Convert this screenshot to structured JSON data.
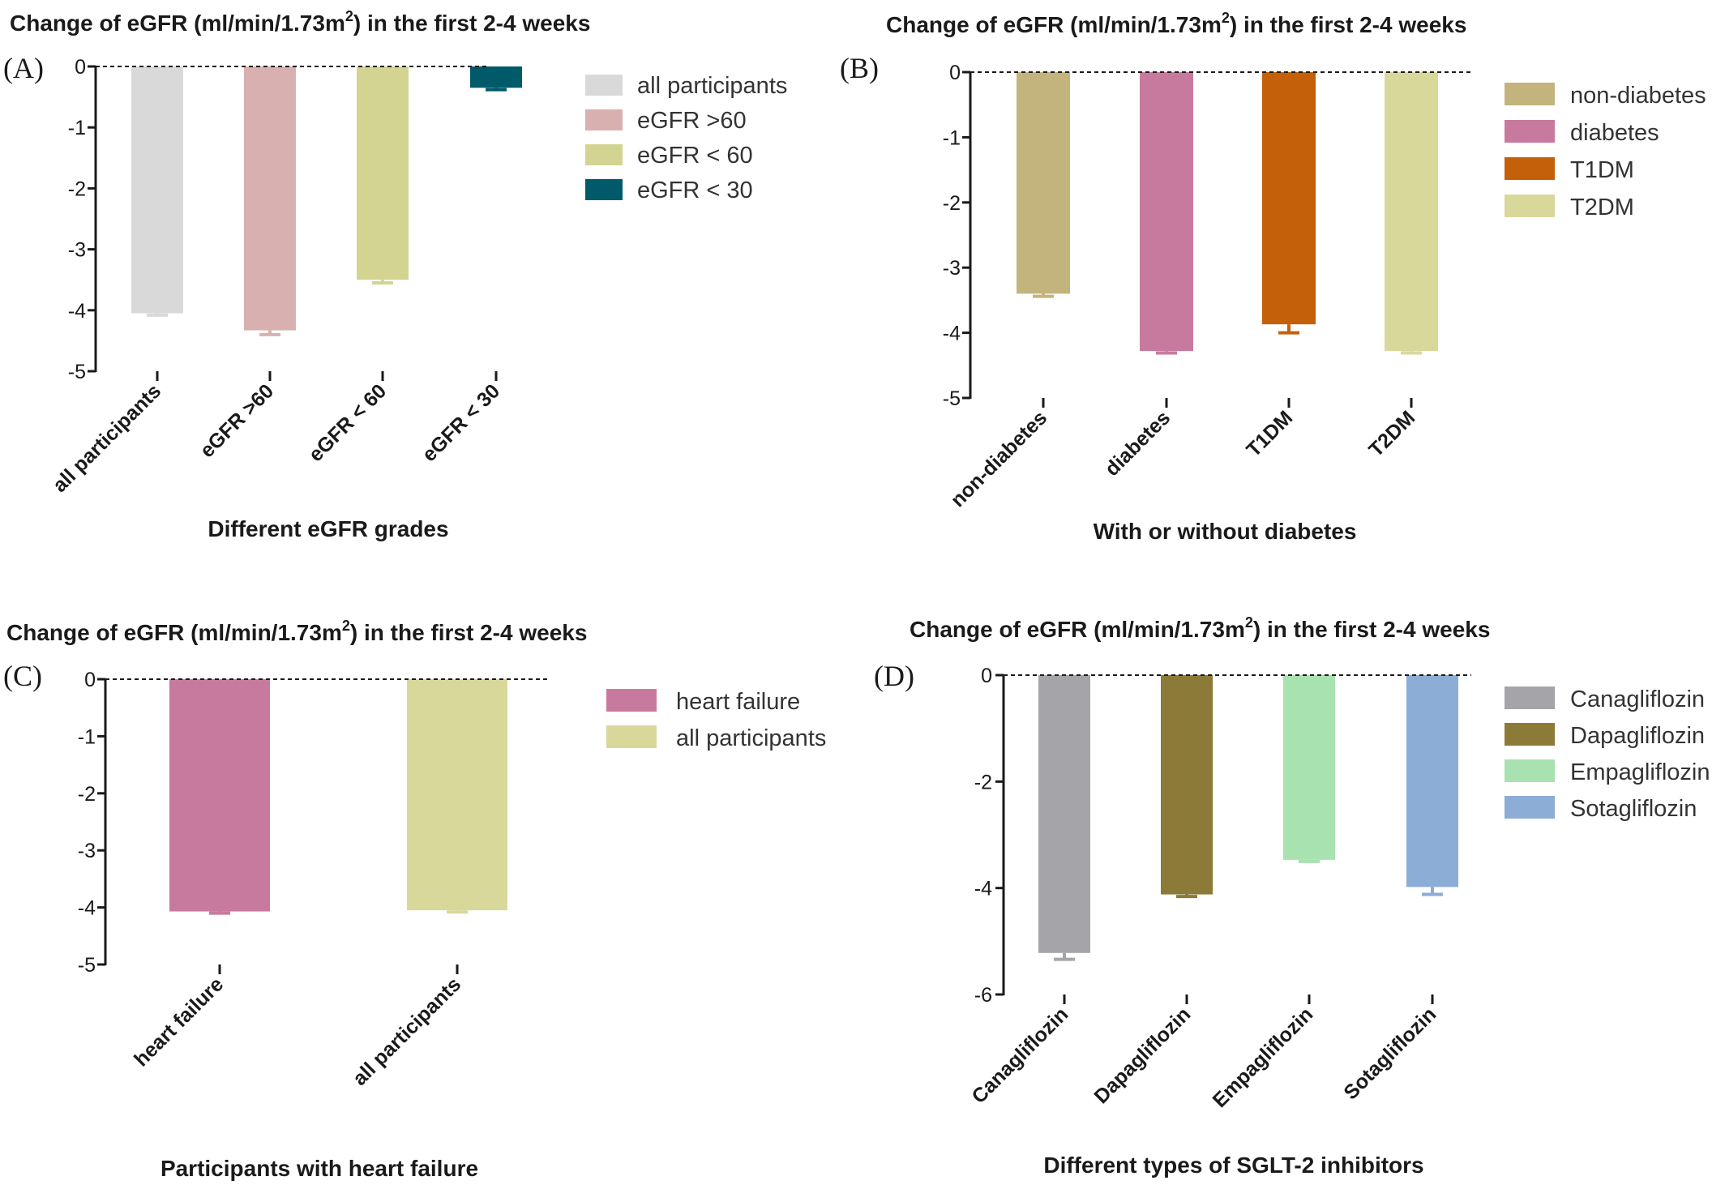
{
  "chart_data": [
    {
      "type": "bar",
      "panel": "(A)",
      "title": "Change of eGFR (ml/min/1.73m",
      "title_sup": "2",
      "title_tail": ") in the first 2-4 weeks",
      "xlabel": "Different eGFR grades",
      "ylim": [
        -5,
        0
      ],
      "yticks": [
        0,
        -1,
        -2,
        -3,
        -4,
        -5
      ],
      "categories": [
        "all participants",
        "eGFR >60",
        "eGFR < 60",
        "eGFR < 30"
      ],
      "values": [
        -4.05,
        -4.33,
        -3.5,
        -0.35
      ],
      "errors": [
        0.03,
        0.07,
        0.05,
        0.03
      ],
      "colors": [
        "#d9d9d9",
        "#d9b0b0",
        "#d4d492",
        "#005a6a"
      ],
      "legend": [
        "all participants",
        "eGFR >60",
        "eGFR < 60",
        "eGFR < 30"
      ],
      "legend_position": "right"
    },
    {
      "type": "bar",
      "panel": "(B)",
      "title": "Change of eGFR (ml/min/1.73m",
      "title_sup": "2",
      "title_tail": ") in the first 2-4 weeks",
      "xlabel": "With or without diabetes",
      "ylim": [
        -5,
        0
      ],
      "yticks": [
        0,
        -1,
        -2,
        -3,
        -4,
        -5
      ],
      "categories": [
        "non-diabetes",
        "diabetes",
        "T1DM",
        "T2DM"
      ],
      "values": [
        -3.4,
        -4.28,
        -3.87,
        -4.28
      ],
      "errors": [
        0.04,
        0.03,
        0.13,
        0.03
      ],
      "colors": [
        "#c2b47c",
        "#c87a9e",
        "#c4600a",
        "#d9d89b"
      ],
      "legend": [
        "non-diabetes",
        "diabetes",
        "T1DM",
        "T2DM"
      ],
      "legend_position": "right"
    },
    {
      "type": "bar",
      "panel": "(C)",
      "title": "Change of eGFR (ml/min/1.73m",
      "title_sup": "2",
      "title_tail": ") in the first 2-4 weeks",
      "xlabel": "Participants with heart failure",
      "ylim": [
        -5,
        0
      ],
      "yticks": [
        0,
        -1,
        -2,
        -3,
        -4,
        -5
      ],
      "categories": [
        "heart failure",
        "all participants"
      ],
      "values": [
        -4.07,
        -4.05
      ],
      "errors": [
        0.03,
        0.03
      ],
      "colors": [
        "#c87a9e",
        "#d9d89b"
      ],
      "legend": [
        "heart failure",
        "all participants"
      ],
      "legend_position": "right"
    },
    {
      "type": "bar",
      "panel": "(D)",
      "title": "Change of eGFR (ml/min/1.73m",
      "title_sup": "2",
      "title_tail": ") in the first 2-4 weeks",
      "xlabel": "Different types of SGLT-2 inhibitors",
      "ylim": [
        -6,
        0
      ],
      "yticks": [
        0,
        -2,
        -4,
        -6
      ],
      "categories": [
        "Canagliflozin",
        "Dapagliflozin",
        "Empagliflozin",
        "Sotagliflozin"
      ],
      "values": [
        -5.22,
        -4.12,
        -3.47,
        -3.98
      ],
      "errors": [
        0.12,
        0.04,
        0.03,
        0.14
      ],
      "colors": [
        "#a5a4a8",
        "#8b7a38",
        "#a8e2b0",
        "#8badd6"
      ],
      "legend": [
        "Canagliflozin",
        "Dapagliflozin",
        "Empagliflozin",
        "Sotagliflozin"
      ],
      "legend_position": "right"
    }
  ]
}
